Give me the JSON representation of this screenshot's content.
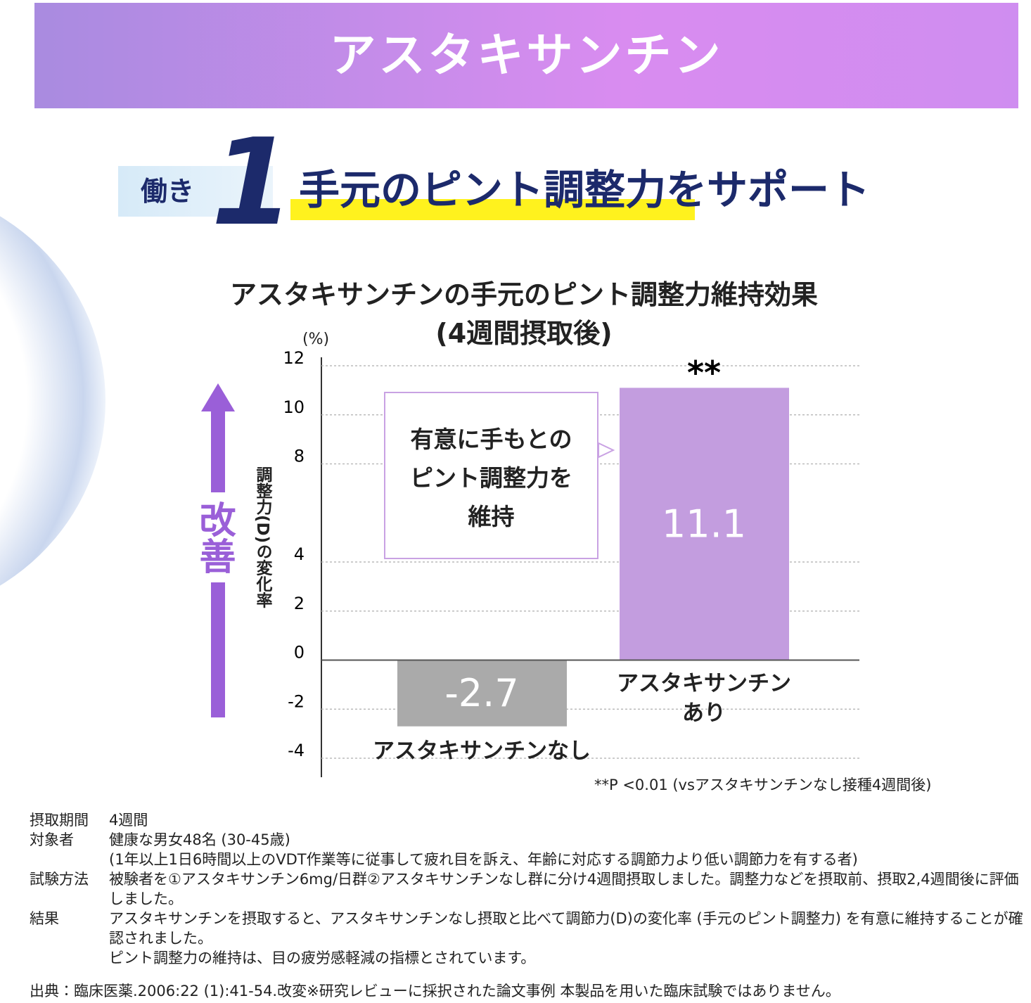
{
  "banner": {
    "title": "アスタキサンチン"
  },
  "headline": {
    "badge": "働き",
    "number": "1",
    "text": "手元のピント調整力をサポート"
  },
  "chart_data": {
    "type": "bar",
    "title": "アスタキサンチンの手元のピント調整力維持効果",
    "subtitle": "(4週間摂取後)",
    "y_unit": "(%)",
    "ylabel": "調整力(D)の変化率",
    "arrow_label": "改善",
    "categories": [
      "アスタキサンチンなし",
      "アスタキサンチン\nあり"
    ],
    "values": [
      -2.7,
      11.1
    ],
    "colors": [
      "#aaaaaa",
      "#c39ddf"
    ],
    "ylim": [
      -4,
      12
    ],
    "yticks": [
      12,
      10,
      8,
      4,
      2,
      0,
      -2,
      -4
    ],
    "grid": true,
    "significance": "**",
    "callout": "有意に手もとの\nピント調整力を\n維持",
    "footnote": "**P <0.01 (vsアスタキサンチンなし接種4週間後)"
  },
  "notes": {
    "rows": [
      [
        "摂取期間",
        "4週間"
      ],
      [
        "対象者",
        "健康な男女48名 (30-45歳)\n (1年以上1日6時間以上のVDT作業等に従事して疲れ目を訴え、年齢に対応する調節力より低い調節力を有する者)"
      ],
      [
        "試験方法",
        "被験者を①アスタキサンチン6mg/日群②アスタキサンチンなし群に分け4週間摂取しました。調整力などを摂取前、摂取2,4週間後に評価しました。"
      ],
      [
        "結果",
        "アスタキサンチンを摂取すると、アスタキサンチンなし摂取と比べて調節力(D)の変化率 (手元のピント調整力) を有意に維持することが確認されました。\nピント調整力の維持は、目の疲労感軽減の指標とされています。"
      ]
    ],
    "source": "出典：臨床医薬.2006:22 (1):41-54.改変※研究レビューに採択された論文事例 本製品を用いた臨床試験ではありません。"
  }
}
